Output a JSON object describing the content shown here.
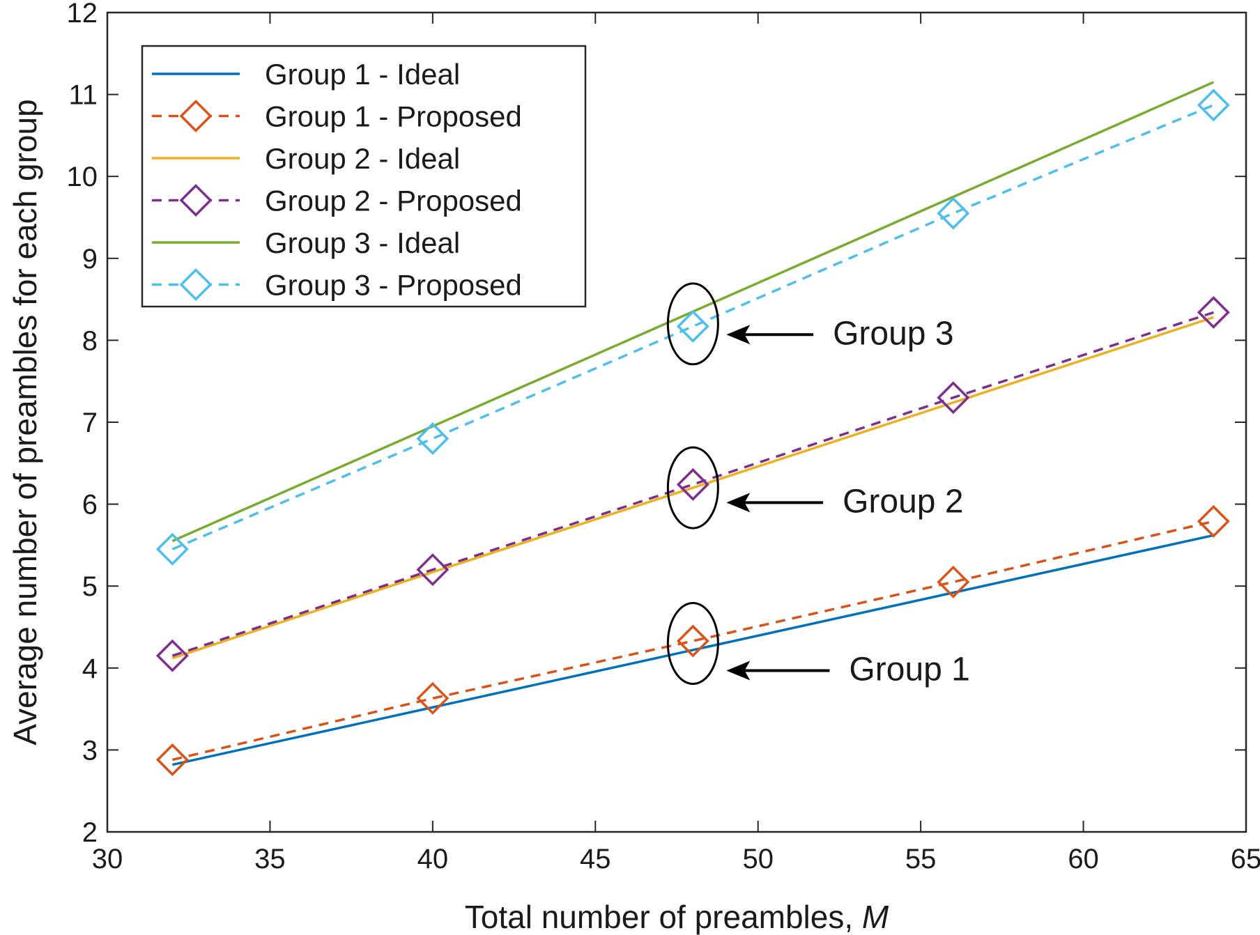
{
  "chart_data": {
    "type": "line",
    "title": "",
    "xlabel": "Total number of preambles, ",
    "xlabel_var": "M",
    "ylabel": "Average number of preambles for each group",
    "xlim": [
      30,
      65
    ],
    "ylim": [
      2,
      12
    ],
    "xticks": [
      30,
      35,
      40,
      45,
      50,
      55,
      60,
      65
    ],
    "yticks": [
      2,
      3,
      4,
      5,
      6,
      7,
      8,
      9,
      10,
      11,
      12
    ],
    "grid": false,
    "legend_position": "top-left",
    "x": [
      32,
      40,
      48,
      56,
      64
    ],
    "series": [
      {
        "name": "Group 1 - Ideal",
        "values": [
          2.82,
          3.52,
          4.22,
          4.92,
          5.62
        ],
        "color": "#0072BD",
        "style": "solid",
        "marker": "none"
      },
      {
        "name": "Group 1 - Proposed",
        "values": [
          2.88,
          3.63,
          4.33,
          5.05,
          5.79
        ],
        "color": "#D95319",
        "style": "dashed",
        "marker": "diamond"
      },
      {
        "name": "Group 2 - Ideal",
        "values": [
          4.12,
          5.17,
          6.2,
          7.24,
          8.28
        ],
        "color": "#EDB120",
        "style": "solid",
        "marker": "none"
      },
      {
        "name": "Group 2 - Proposed",
        "values": [
          4.15,
          5.2,
          6.24,
          7.3,
          8.34
        ],
        "color": "#7E2F8E",
        "style": "dashed",
        "marker": "diamond"
      },
      {
        "name": "Group 3 - Ideal",
        "values": [
          5.55,
          6.95,
          8.35,
          9.75,
          11.15
        ],
        "color": "#77AC30",
        "style": "solid",
        "marker": "none"
      },
      {
        "name": "Group 3 - Proposed",
        "values": [
          5.45,
          6.8,
          8.17,
          9.55,
          10.87
        ],
        "color": "#4DBEEE",
        "style": "dashed",
        "marker": "diamond"
      }
    ],
    "annotations": [
      {
        "text": "Group 3",
        "circle_at": [
          48,
          8.2
        ],
        "text_at": [
          52.3,
          7.95
        ]
      },
      {
        "text": "Group 2",
        "circle_at": [
          48,
          6.2
        ],
        "text_at": [
          52.6,
          5.9
        ]
      },
      {
        "text": "Group 1",
        "circle_at": [
          48,
          4.3
        ],
        "text_at": [
          52.8,
          3.85
        ]
      }
    ]
  }
}
